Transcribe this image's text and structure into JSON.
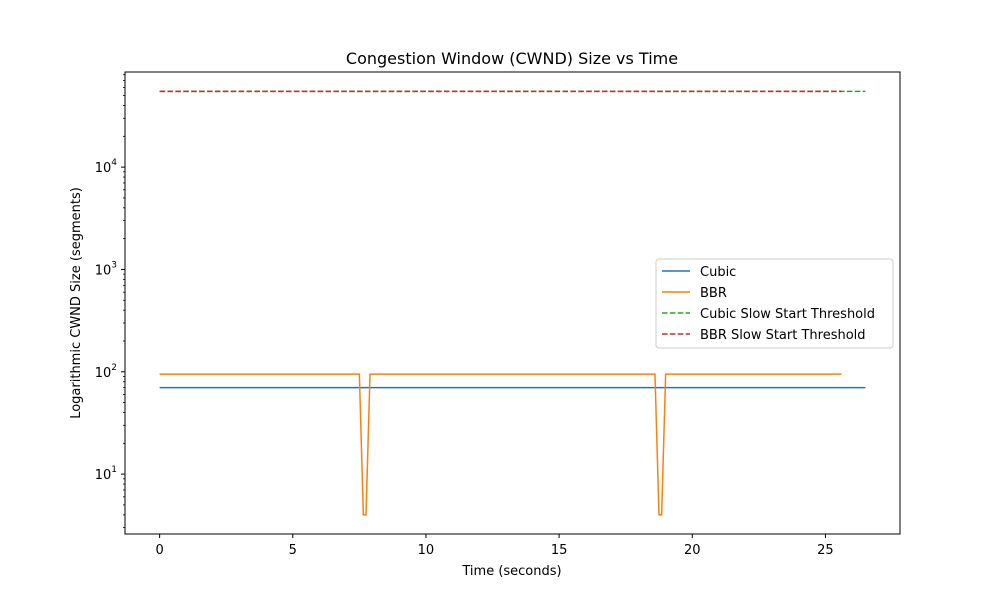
{
  "chart_data": {
    "type": "line",
    "title": "Congestion Window (CWND) Size vs Time",
    "xlabel": "Time (seconds)",
    "ylabel": "Logarithmic CWND Size (segments)",
    "xlim": [
      -1.3,
      27.8
    ],
    "ylim": [
      2.6,
      85000
    ],
    "yscale": "log",
    "grid": false,
    "legend_position": "center-right",
    "x_ticks": [
      0,
      5,
      10,
      15,
      20,
      25
    ],
    "x_tick_labels": [
      "0",
      "5",
      "10",
      "15",
      "20",
      "25"
    ],
    "y_ticks": [
      10,
      100,
      1000,
      10000
    ],
    "y_tick_labels": [
      {
        "base": "10",
        "exp": "1"
      },
      {
        "base": "10",
        "exp": "2"
      },
      {
        "base": "10",
        "exp": "3"
      },
      {
        "base": "10",
        "exp": "4"
      }
    ],
    "series": [
      {
        "name": "Cubic",
        "color": "#1f77b4",
        "dash": "solid",
        "x": [
          0,
          26.5
        ],
        "y": [
          70,
          70
        ]
      },
      {
        "name": "BBR",
        "color": "#ff7f0e",
        "dash": "solid",
        "x": [
          0,
          7.5,
          7.65,
          7.75,
          7.9,
          18.6,
          18.75,
          18.85,
          19.0,
          25.6
        ],
        "y": [
          95,
          95,
          4,
          4,
          95,
          95,
          4,
          4,
          95,
          95
        ]
      },
      {
        "name": "Cubic Slow Start Threshold",
        "color": "#2ca02c",
        "dash": "dashed",
        "x": [
          0,
          26.5
        ],
        "y": [
          55000,
          55000
        ]
      },
      {
        "name": "BBR Slow Start Threshold",
        "color": "#d62728",
        "dash": "dashed",
        "x": [
          0,
          25.6
        ],
        "y": [
          55000,
          55000
        ]
      }
    ]
  }
}
